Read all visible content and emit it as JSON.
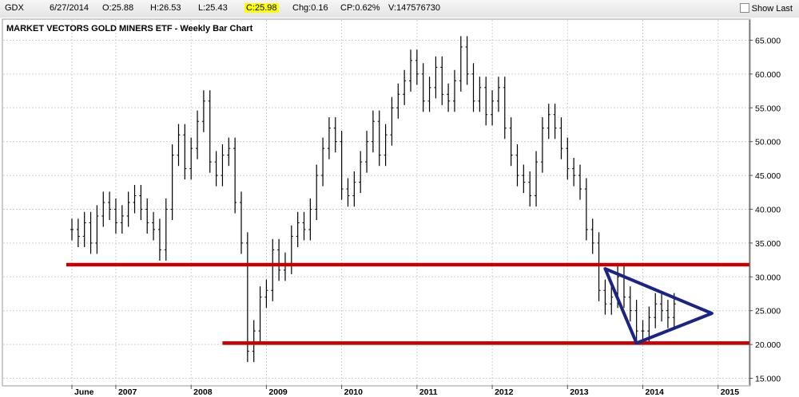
{
  "header": {
    "symbol": "GDX",
    "date": "6/27/2014",
    "open": "O:25.88",
    "high": "H:26.53",
    "low": "L:25.43",
    "close": "C:25.98",
    "change": "Chg:0.16",
    "change_pct": "CP:0.62%",
    "volume": "V:147576730",
    "show_last_label": "Show Last",
    "close_highlight_color": "#ffff00"
  },
  "chart_data": {
    "type": "bar",
    "title": "MARKET VECTORS GOLD MINERS ETF - Weekly Bar Chart",
    "x_tick_labels": [
      "June",
      "2007",
      "2008",
      "2009",
      "2010",
      "2011",
      "2012",
      "2013",
      "2014",
      "2015"
    ],
    "x_range": [
      "2006-06",
      "2015-06"
    ],
    "y_ticks": [
      15,
      20,
      25,
      30,
      35,
      40,
      45,
      50,
      55,
      60,
      65
    ],
    "y_tick_labels": [
      "15.000",
      "20.000",
      "25.000",
      "30.000",
      "35.000",
      "40.000",
      "45.000",
      "50.000",
      "55.000",
      "60.000",
      "65.000"
    ],
    "ylim": [
      14,
      68
    ],
    "y_axis_position": "right",
    "grid": true,
    "bar_color": "#000000",
    "series": [
      {
        "x": [
          "2006-06",
          "2006-07",
          "2006-08",
          "2006-09",
          "2006-10",
          "2006-11",
          "2006-12",
          "2007-01",
          "2007-02",
          "2007-03",
          "2007-04",
          "2007-05",
          "2007-06",
          "2007-07",
          "2007-08",
          "2007-09",
          "2007-10",
          "2007-11",
          "2007-12",
          "2008-01",
          "2008-02",
          "2008-03",
          "2008-04",
          "2008-05",
          "2008-06",
          "2008-07",
          "2008-08",
          "2008-09",
          "2008-10",
          "2008-11",
          "2008-12",
          "2009-01",
          "2009-02",
          "2009-03",
          "2009-04",
          "2009-05",
          "2009-06",
          "2009-07",
          "2009-08",
          "2009-09",
          "2009-10",
          "2009-11",
          "2009-12",
          "2010-01",
          "2010-02",
          "2010-03",
          "2010-04",
          "2010-05",
          "2010-06",
          "2010-07",
          "2010-08",
          "2010-09",
          "2010-10",
          "2010-11",
          "2010-12",
          "2011-01",
          "2011-02",
          "2011-03",
          "2011-04",
          "2011-05",
          "2011-06",
          "2011-07",
          "2011-08",
          "2011-09",
          "2011-10",
          "2011-11",
          "2011-12",
          "2012-01",
          "2012-02",
          "2012-03",
          "2012-04",
          "2012-05",
          "2012-06",
          "2012-07",
          "2012-08",
          "2012-09",
          "2012-10",
          "2012-11",
          "2012-12",
          "2013-01",
          "2013-02",
          "2013-03",
          "2013-04",
          "2013-05",
          "2013-06",
          "2013-07",
          "2013-08",
          "2013-09",
          "2013-10",
          "2013-11",
          "2013-12",
          "2014-01",
          "2014-02",
          "2014-03",
          "2014-04",
          "2014-05",
          "2014-06"
        ],
        "values": [
          37,
          36,
          38,
          35,
          39,
          41,
          40,
          38,
          39,
          41,
          42,
          40,
          38,
          37,
          34,
          40,
          48,
          51,
          46,
          49,
          53,
          56,
          47,
          45,
          48,
          49,
          41,
          35,
          19,
          22,
          27,
          28,
          34,
          31,
          32,
          36,
          38,
          37,
          40,
          45,
          49,
          52,
          50,
          43,
          42,
          44,
          47,
          50,
          53,
          48,
          51,
          55,
          57,
          59,
          62,
          60,
          56,
          58,
          61,
          57,
          56,
          59,
          64,
          60,
          56,
          58,
          54,
          56,
          58,
          52,
          48,
          45,
          44,
          42,
          47,
          52,
          54,
          52,
          49,
          46,
          45,
          43,
          37,
          35,
          28,
          26,
          27,
          30,
          27,
          25,
          22,
          22,
          24,
          26,
          25,
          24,
          26
        ]
      }
    ],
    "annotations": [
      {
        "type": "horizontal-line",
        "color": "#c40000",
        "y": 31.8,
        "x_start": "2006-06",
        "x_end": "2015-06"
      },
      {
        "type": "horizontal-line",
        "color": "#c40000",
        "y": 20.2,
        "x_start": "2008-06",
        "x_end": "2015-06"
      },
      {
        "type": "triangle",
        "color": "#1a2486",
        "points": [
          [
            "2013-07",
            31.2
          ],
          [
            "2014-12",
            24.6
          ],
          [
            "2013-12",
            20.2
          ]
        ]
      }
    ]
  }
}
